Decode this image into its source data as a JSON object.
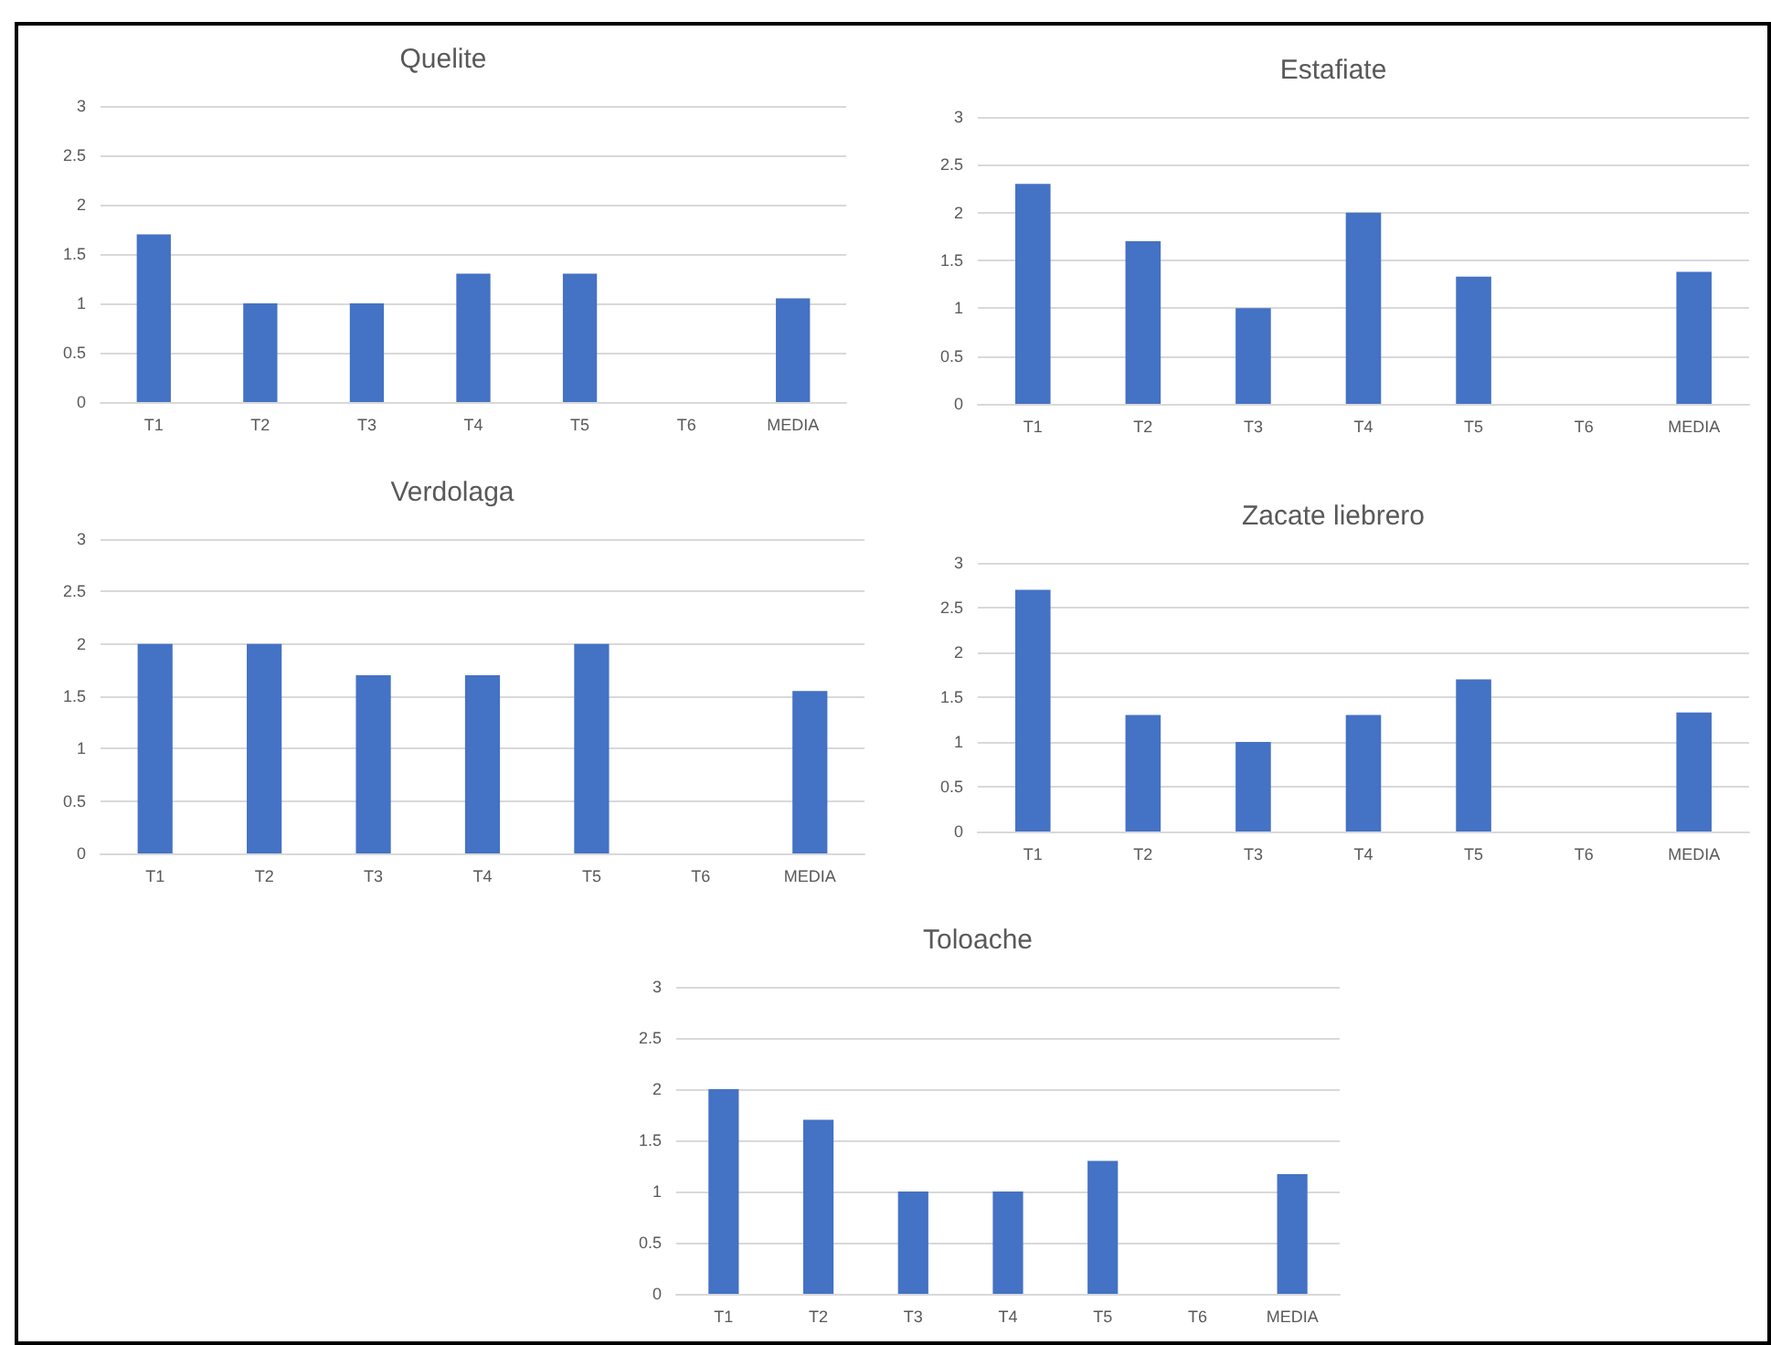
{
  "chart_data": [
    {
      "type": "bar",
      "title": "Quelite",
      "categories": [
        "T1",
        "T2",
        "T3",
        "T4",
        "T5",
        "T6",
        "MEDIA"
      ],
      "values": [
        1.7,
        1,
        1,
        1.3,
        1.3,
        null,
        1.05
      ],
      "color": "#4472c4",
      "ylim": [
        0,
        3
      ],
      "yticks": [
        0,
        0.5,
        1,
        1.5,
        2,
        2.5,
        3
      ],
      "grid": "y"
    },
    {
      "type": "bar",
      "title": "Estafiate",
      "categories": [
        "T1",
        "T2",
        "T3",
        "T4",
        "T5",
        "T6",
        "MEDIA"
      ],
      "values": [
        2.3,
        1.7,
        1,
        2,
        1.33,
        null,
        1.38
      ],
      "color": "#4472c4",
      "ylim": [
        0,
        3
      ],
      "yticks": [
        0,
        0.5,
        1,
        1.5,
        2,
        2.5,
        3
      ],
      "grid": "y"
    },
    {
      "type": "bar",
      "title": "Verdolaga",
      "categories": [
        "T1",
        "T2",
        "T3",
        "T4",
        "T5",
        "T6",
        "MEDIA"
      ],
      "values": [
        2,
        2,
        1.7,
        1.7,
        2,
        null,
        1.55
      ],
      "color": "#4472c4",
      "ylim": [
        0,
        3
      ],
      "yticks": [
        0,
        0.5,
        1,
        1.5,
        2,
        2.5,
        3
      ],
      "grid": "y"
    },
    {
      "type": "bar",
      "title": "Zacate liebrero",
      "categories": [
        "T1",
        "T2",
        "T3",
        "T4",
        "T5",
        "T6",
        "MEDIA"
      ],
      "values": [
        2.7,
        1.3,
        1,
        1.3,
        1.7,
        null,
        1.33
      ],
      "color": "#4472c4",
      "ylim": [
        0,
        3
      ],
      "yticks": [
        0,
        0.5,
        1,
        1.5,
        2,
        2.5,
        3
      ],
      "grid": "y"
    },
    {
      "type": "bar",
      "title": "Toloache",
      "categories": [
        "T1",
        "T2",
        "T3",
        "T4",
        "T5",
        "T6",
        "MEDIA"
      ],
      "values": [
        2,
        1.7,
        1,
        1,
        1.3,
        null,
        1.17
      ],
      "color": "#4472c4",
      "ylim": [
        0,
        3
      ],
      "yticks": [
        0,
        0.5,
        1,
        1.5,
        2,
        2.5,
        3
      ],
      "grid": "y"
    }
  ]
}
